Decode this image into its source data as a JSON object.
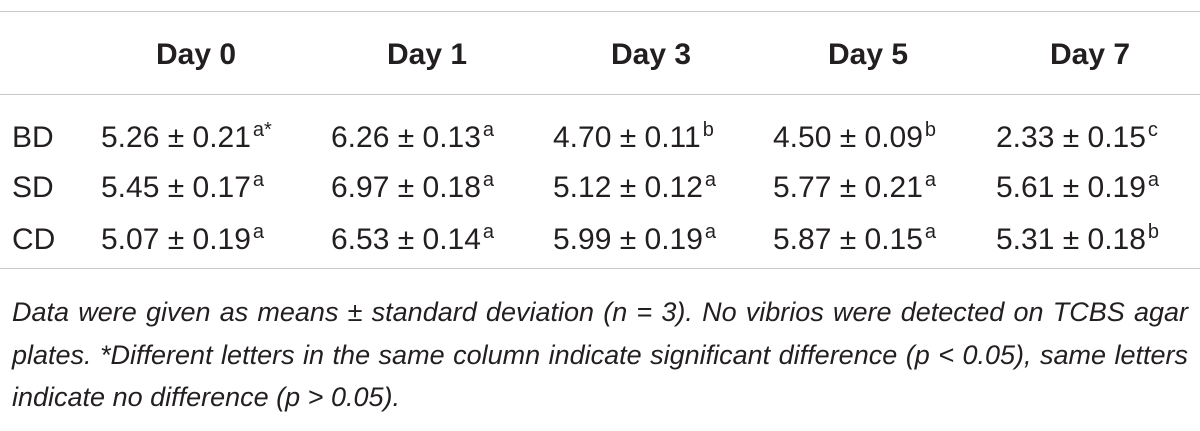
{
  "table": {
    "columns": [
      "Day 0",
      "Day 1",
      "Day 3",
      "Day 5",
      "Day 7"
    ],
    "rows": [
      {
        "label": "BD",
        "cells": [
          {
            "value": "5.26 ± 0.21",
            "sup": "a*"
          },
          {
            "value": "6.26 ± 0.13",
            "sup": "a"
          },
          {
            "value": "4.70 ± 0.11",
            "sup": "b"
          },
          {
            "value": "4.50 ± 0.09",
            "sup": "b"
          },
          {
            "value": "2.33 ± 0.15",
            "sup": "c"
          }
        ]
      },
      {
        "label": "SD",
        "cells": [
          {
            "value": "5.45 ± 0.17",
            "sup": "a"
          },
          {
            "value": "6.97 ± 0.18",
            "sup": "a"
          },
          {
            "value": "5.12 ± 0.12",
            "sup": "a"
          },
          {
            "value": "5.77 ± 0.21",
            "sup": "a"
          },
          {
            "value": "5.61 ± 0.19",
            "sup": "a"
          }
        ]
      },
      {
        "label": "CD",
        "cells": [
          {
            "value": "5.07 ± 0.19",
            "sup": "a"
          },
          {
            "value": "6.53 ± 0.14",
            "sup": "a"
          },
          {
            "value": "5.99 ± 0.19",
            "sup": "a"
          },
          {
            "value": "5.87 ± 0.15",
            "sup": "a"
          },
          {
            "value": "5.31 ± 0.18",
            "sup": "b"
          }
        ]
      }
    ],
    "footnote": "Data were given as means ± standard deviation (n = 3). No vibrios were detected on TCBS agar plates. *Different letters in the same column indicate significant difference (p < 0.05), same letters indicate no difference (p > 0.05)."
  }
}
